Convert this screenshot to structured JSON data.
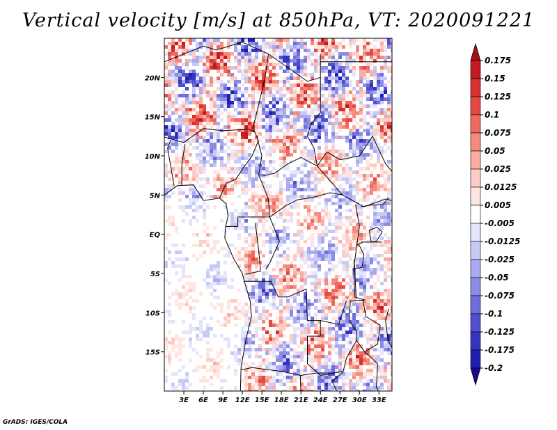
{
  "chart_data": {
    "type": "heatmap",
    "title": "Vertical velocity [m/s] at 850hPa, VT: 2020091221",
    "variable": "Vertical velocity",
    "units": "m/s",
    "level": "850hPa",
    "valid_time": "2020091221",
    "x_ticks": [
      "3E",
      "6E",
      "9E",
      "12E",
      "15E",
      "18E",
      "21E",
      "24E",
      "27E",
      "30E",
      "33E"
    ],
    "x_tick_values": [
      3,
      6,
      9,
      12,
      15,
      18,
      21,
      24,
      27,
      30,
      33
    ],
    "y_ticks": [
      "20N",
      "15N",
      "10N",
      "5N",
      "EQ",
      "5S",
      "10S",
      "15S"
    ],
    "y_tick_values": [
      20,
      15,
      10,
      5,
      0,
      -5,
      -10,
      -15
    ],
    "xlim": [
      0,
      35
    ],
    "ylim": [
      -20,
      25
    ],
    "colorbar_labels": [
      "0.175",
      "0.15",
      "0.125",
      "0.1",
      "0.075",
      "0.05",
      "0.025",
      "0.0125",
      "0.005",
      "-0.005",
      "-0.0125",
      "-0.025",
      "-0.05",
      "-0.075",
      "-0.1",
      "-0.125",
      "-0.175",
      "-0.2"
    ],
    "colorbar_colors": [
      "#a50f15",
      "#c11a22",
      "#d7302f",
      "#e34a42",
      "#ef6a5e",
      "#f58b7e",
      "#f9ada3",
      "#fccdc6",
      "#fee6e2",
      "#ffffff",
      "#e4e4fb",
      "#c9c9f5",
      "#aaaaee",
      "#8c8ce6",
      "#6e6edc",
      "#5050cf",
      "#3434c0",
      "#1f1fb0",
      "#0f0fa0"
    ],
    "colorbar_top_color": "#a50f15",
    "colorbar_bottom_color": "#1b0a8f"
  },
  "footer": "GrADS: IGES/COLA"
}
